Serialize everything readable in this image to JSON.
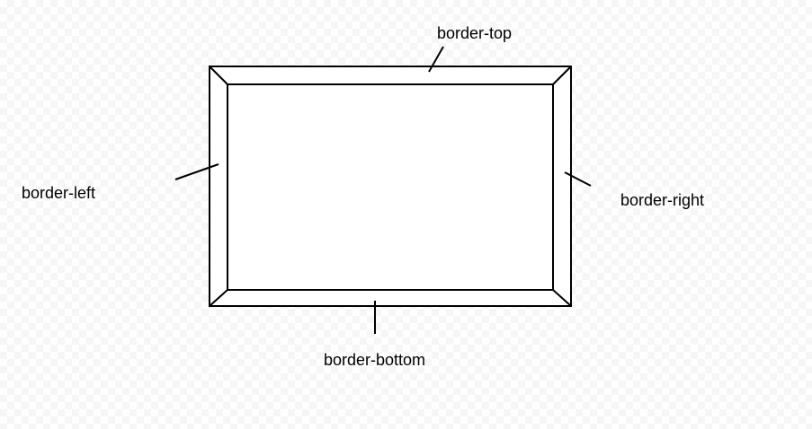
{
  "labels": {
    "top": "border-top",
    "left": "border-left",
    "right": "border-right",
    "bottom": "border-bottom"
  },
  "colors": {
    "stroke": "#000000",
    "fill": "#ffffff"
  }
}
